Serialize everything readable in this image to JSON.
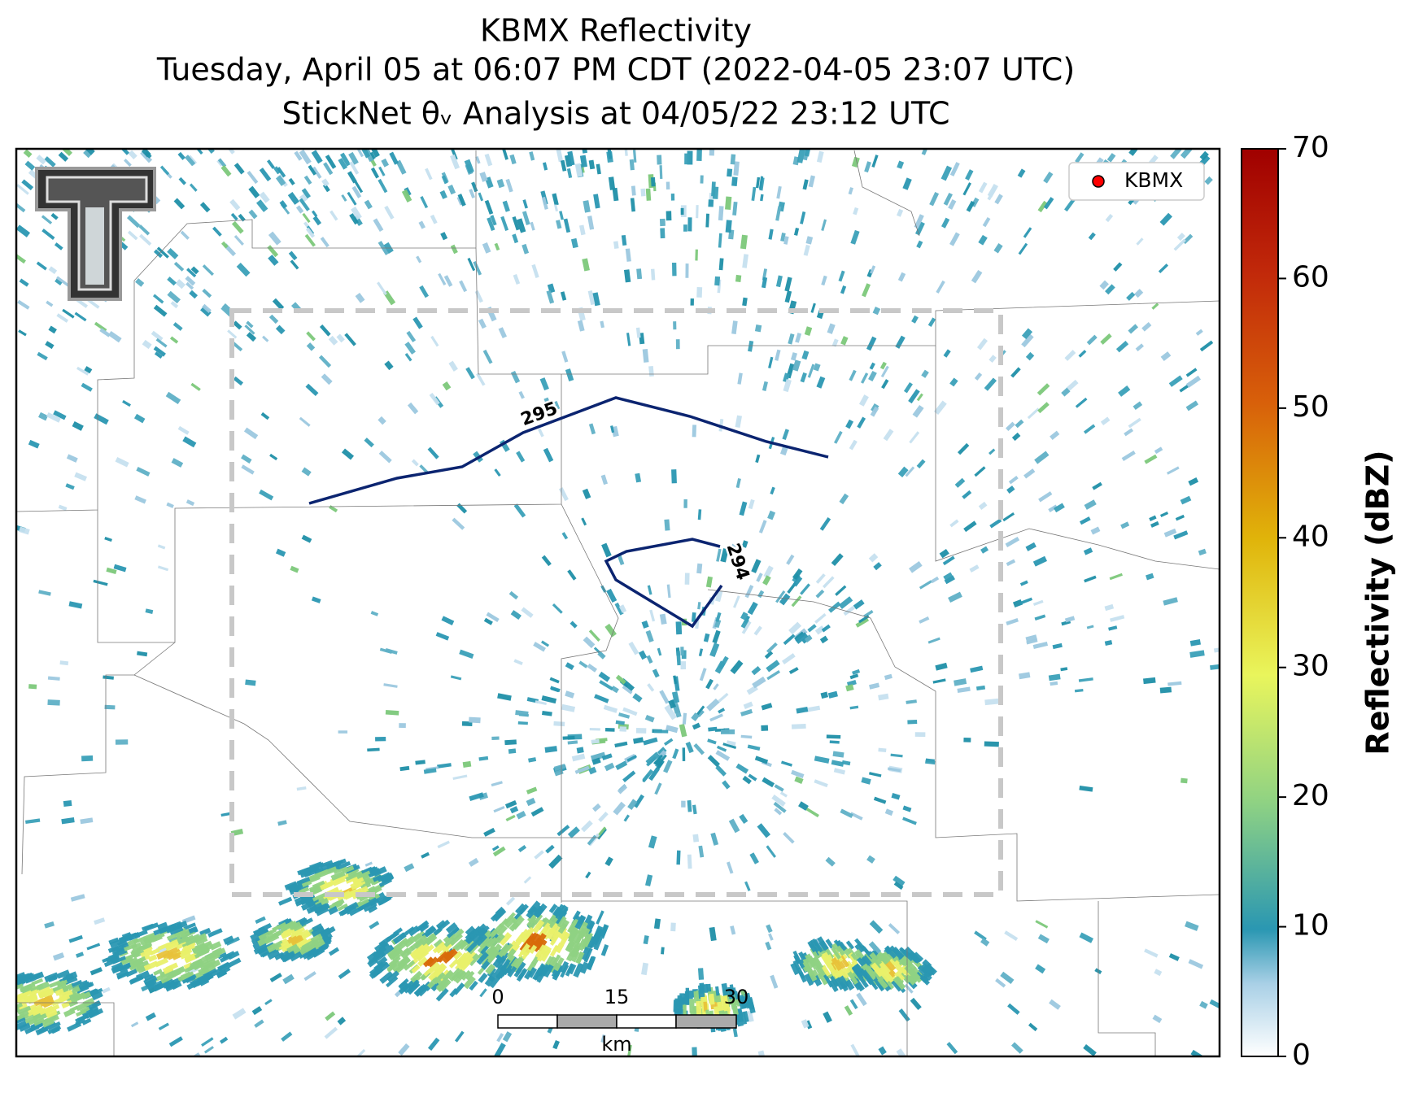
{
  "title": {
    "line1": "KBMX Reflectivity",
    "line2": "Tuesday, April 05 at 06:07 PM CDT (2022-04-05 23:07 UTC)",
    "line3": "StickNet θᵥ Analysis at 04/05/22 23:12 UTC"
  },
  "legend": {
    "label": "KBMX",
    "color": "#ff0000"
  },
  "contours": [
    {
      "label": "295"
    },
    {
      "label": "294"
    }
  ],
  "scale_bar": {
    "ticks": [
      "0",
      "15",
      "30"
    ],
    "unit": "km"
  },
  "colorbar": {
    "label": "Reflectivity (dBZ)",
    "lim": [
      0,
      70
    ],
    "ticks": [
      0,
      10,
      20,
      30,
      40,
      50,
      60,
      70
    ]
  }
}
